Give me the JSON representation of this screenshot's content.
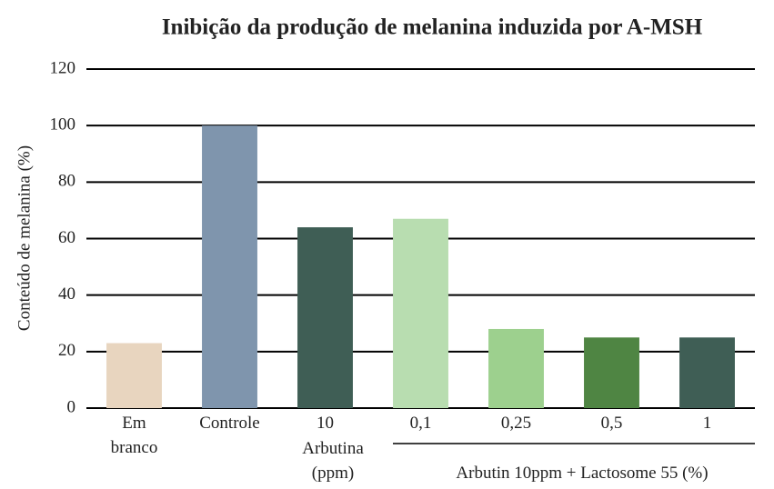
{
  "chart_data": {
    "type": "bar",
    "title": "Inibição da produção de melanina induzida por A-MSH",
    "y_label": "Conteúdo de melanina (%)",
    "categories": [
      "Em branco",
      "Controle",
      "10",
      "0,1",
      "0,25",
      "0,5",
      "1"
    ],
    "values": [
      23,
      100,
      64,
      67,
      28,
      25,
      25
    ],
    "colors": [
      "#e8d5bf",
      "#7f95ad",
      "#3f5e55",
      "#b8ddb0",
      "#9dd08e",
      "#4f8543",
      "#3f5e55"
    ],
    "annotations": [
      "Arbutina (ppm)",
      "Arbutin 10ppm + Lactosome 55 (%)"
    ],
    "ylim": [
      0,
      120
    ],
    "yticks": [
      0,
      20,
      40,
      60,
      80,
      100,
      120
    ],
    "grid": true
  }
}
